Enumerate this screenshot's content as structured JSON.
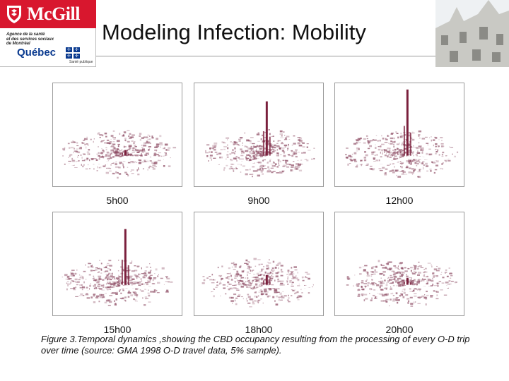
{
  "header": {
    "university": "McGill",
    "agency_lines": "Agence de la santé\net des services sociaux\nde Montréal",
    "province": "Québec",
    "public_health": "Santé publique",
    "title": "Modeling Infection: Mobility"
  },
  "figure": {
    "panels": [
      {
        "time": "5h00",
        "peak": 0.08
      },
      {
        "time": "9h00",
        "peak": 0.78
      },
      {
        "time": "12h00",
        "peak": 0.95
      },
      {
        "time": "15h00",
        "peak": 0.8
      },
      {
        "time": "18h00",
        "peak": 0.14
      },
      {
        "time": "20h00",
        "peak": 0.1
      }
    ],
    "caption": "Figure 3.Temporal dynamics ,showing the CBD occupancy resulting from the processing of every O-D trip over time (source: GMA 1998 O-D travel data, 5% sample)."
  },
  "colors": {
    "mcgill_red": "#d8172e",
    "quebec_blue": "#0a3a8f",
    "map_fill": "#8c4a62",
    "peak": "#7a1f3c"
  }
}
